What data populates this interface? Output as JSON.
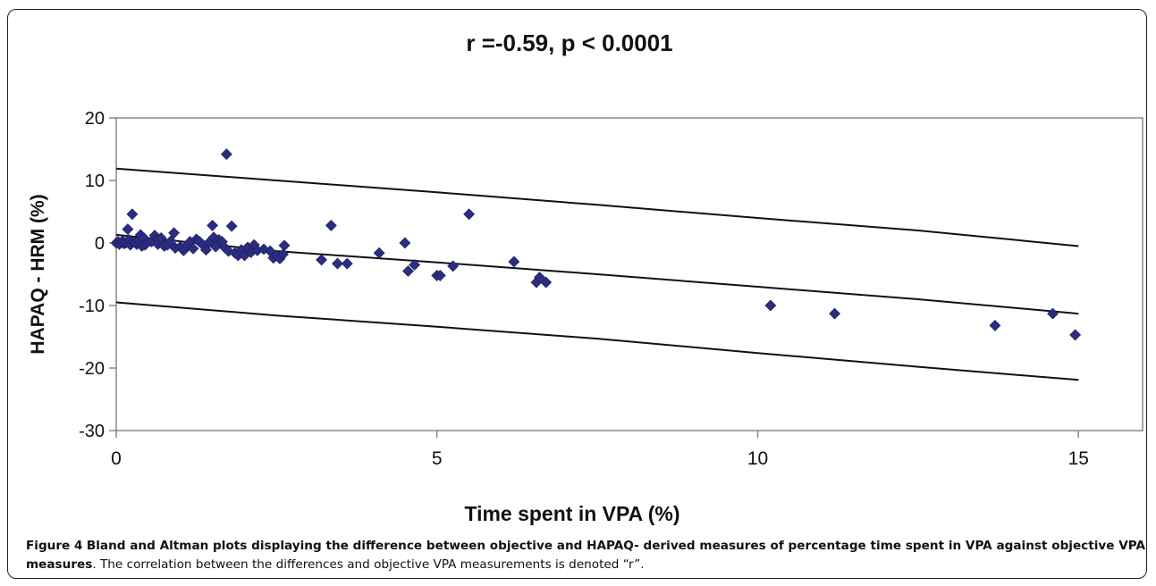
{
  "chart_data": {
    "type": "scatter",
    "title": "r =-0.59, p < 0.0001",
    "xlabel": "Time spent in VPA (%)",
    "ylabel": "HAPAQ - HRM (%)",
    "xlim": [
      0,
      16
    ],
    "ylim": [
      -30,
      20
    ],
    "x_ticks": [
      "0",
      "5",
      "10",
      "15"
    ],
    "y_ticks": [
      "20",
      "10",
      "0",
      "-10",
      "-20",
      "-30"
    ],
    "grid": false,
    "marker_color": "#2b2d80",
    "line_color": "#111111",
    "points": [
      [
        0,
        0
      ],
      [
        0.03,
        0.2
      ],
      [
        0.05,
        -0.2
      ],
      [
        0.08,
        0.1
      ],
      [
        0.1,
        0.3
      ],
      [
        0.12,
        -0.1
      ],
      [
        0.15,
        0
      ],
      [
        0.18,
        2.2
      ],
      [
        0.2,
        0.5
      ],
      [
        0.22,
        -0.3
      ],
      [
        0.25,
        4.6
      ],
      [
        0.27,
        0.2
      ],
      [
        0.3,
        0
      ],
      [
        0.32,
        -0.2
      ],
      [
        0.35,
        0.4
      ],
      [
        0.38,
        1.3
      ],
      [
        0.4,
        -0.5
      ],
      [
        0.43,
        0.8
      ],
      [
        0.45,
        -0.3
      ],
      [
        0.48,
        0
      ],
      [
        0.55,
        0.2
      ],
      [
        0.6,
        1.2
      ],
      [
        0.65,
        -0.2
      ],
      [
        0.7,
        0.8
      ],
      [
        0.75,
        -0.5
      ],
      [
        0.8,
        -0.3
      ],
      [
        0.85,
        0.3
      ],
      [
        0.9,
        1.6
      ],
      [
        0.92,
        -0.8
      ],
      [
        1.0,
        -0.6
      ],
      [
        1.05,
        -1.2
      ],
      [
        1.1,
        -0.4
      ],
      [
        1.15,
        0.2
      ],
      [
        1.2,
        -0.9
      ],
      [
        1.25,
        0.6
      ],
      [
        1.3,
        0.2
      ],
      [
        1.35,
        -0.3
      ],
      [
        1.4,
        -1.1
      ],
      [
        1.45,
        0.1
      ],
      [
        1.5,
        2.8
      ],
      [
        1.52,
        0.9
      ],
      [
        1.55,
        -0.6
      ],
      [
        1.6,
        0.5
      ],
      [
        1.65,
        0.2
      ],
      [
        1.7,
        -0.8
      ],
      [
        1.72,
        14.2
      ],
      [
        1.75,
        -1.3
      ],
      [
        1.8,
        2.7
      ],
      [
        1.85,
        -1.6
      ],
      [
        1.9,
        -2
      ],
      [
        1.95,
        -1.1
      ],
      [
        2.0,
        -2
      ],
      [
        2.05,
        -0.7
      ],
      [
        2.1,
        -1.5
      ],
      [
        2.15,
        -0.3
      ],
      [
        2.2,
        -1.2
      ],
      [
        2.3,
        -1.0
      ],
      [
        2.4,
        -1.3
      ],
      [
        2.45,
        -2.4
      ],
      [
        2.5,
        -2
      ],
      [
        2.55,
        -2.5
      ],
      [
        2.6,
        -1.8
      ],
      [
        2.62,
        -0.4
      ],
      [
        3.2,
        -2.7
      ],
      [
        3.35,
        2.8
      ],
      [
        3.45,
        -3.3
      ],
      [
        3.6,
        -3.3
      ],
      [
        4.1,
        -1.6
      ],
      [
        4.5,
        0
      ],
      [
        4.55,
        -4.5
      ],
      [
        4.65,
        -3.5
      ],
      [
        5.0,
        -5.2
      ],
      [
        5.05,
        -5.2
      ],
      [
        5.25,
        -3.7
      ],
      [
        5.5,
        4.6
      ],
      [
        6.2,
        -3
      ],
      [
        6.55,
        -6.3
      ],
      [
        6.6,
        -5.5
      ],
      [
        6.7,
        -6.3
      ],
      [
        10.2,
        -10
      ],
      [
        11.2,
        -11.3
      ],
      [
        13.7,
        -13.2
      ],
      [
        14.6,
        -11.3
      ],
      [
        14.95,
        -14.7
      ]
    ],
    "lines": [
      {
        "name": "",
        "points": [
          [
            0,
            11.9
          ],
          [
            2.5,
            10.0
          ],
          [
            5,
            8.1
          ],
          [
            7.5,
            6.1
          ],
          [
            10,
            4.0
          ],
          [
            12.5,
            2.0
          ],
          [
            15,
            -0.5
          ]
        ]
      },
      {
        "name": "",
        "points": [
          [
            0,
            1.3
          ],
          [
            2.5,
            -1.3
          ],
          [
            5,
            -3.1
          ],
          [
            7.5,
            -5.0
          ],
          [
            10,
            -7.0
          ],
          [
            12.5,
            -9.0
          ],
          [
            15,
            -11.3
          ]
        ]
      },
      {
        "name": "",
        "points": [
          [
            0,
            -9.5
          ],
          [
            2.5,
            -11.6
          ],
          [
            5,
            -13.4
          ],
          [
            7.5,
            -15.3
          ],
          [
            10,
            -17.6
          ],
          [
            12.5,
            -19.8
          ],
          [
            15,
            -21.9
          ]
        ]
      }
    ]
  },
  "caption": {
    "label": "Figure 4",
    "bold_text": "Bland and Altman plots displaying the difference between objective and HAPAQ- derived measures of percentage time spent in VPA against objective VPA measures",
    "normal_text": ". The correlation between the differences and objective VPA measurements is denoted “r”."
  }
}
